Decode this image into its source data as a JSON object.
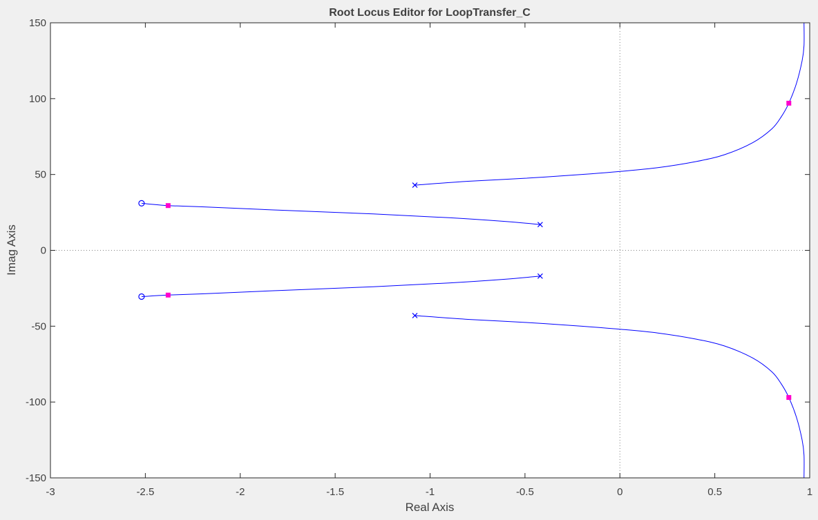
{
  "chart_data": {
    "type": "scatter",
    "title": "Root Locus Editor for LoopTransfer_C",
    "xlabel": "Real Axis",
    "ylabel": "Imag Axis",
    "xlim": [
      -3,
      1
    ],
    "ylim": [
      -150,
      150
    ],
    "xticks": [
      -3,
      -2.5,
      -2,
      -1.5,
      -1,
      -0.5,
      0,
      0.5,
      1
    ],
    "xtick_labels": [
      "-3",
      "-2.5",
      "-2",
      "-1.5",
      "-1",
      "-0.5",
      "0",
      "0.5",
      "1"
    ],
    "yticks": [
      -150,
      -100,
      -50,
      0,
      50,
      100,
      150
    ],
    "ytick_labels": [
      "-150",
      "-100",
      "-50",
      "0",
      "50",
      "100",
      "150"
    ],
    "grid": false,
    "reference_lines": {
      "x": 0,
      "y": 0
    },
    "colors": {
      "locus": "#0000ff",
      "closed_loop_poles": "#ff00cc",
      "axes": "#262626",
      "background": "#ffffff"
    },
    "poles": [
      {
        "x": -1.08,
        "y": 43
      },
      {
        "x": -1.08,
        "y": -43
      },
      {
        "x": -0.42,
        "y": 17
      },
      {
        "x": -0.42,
        "y": -17
      }
    ],
    "zeros": [
      {
        "x": -2.52,
        "y": 31
      },
      {
        "x": -2.52,
        "y": -30.5
      }
    ],
    "closed_loop_poles": [
      {
        "x": -2.38,
        "y": 29.5
      },
      {
        "x": -2.38,
        "y": -29.5
      },
      {
        "x": 0.89,
        "y": 97
      },
      {
        "x": 0.89,
        "y": -97
      }
    ],
    "branches": [
      {
        "x": [
          -1.08,
          -0.8,
          -0.5,
          -0.2,
          0,
          0.2,
          0.4,
          0.55,
          0.7,
          0.8,
          0.85,
          0.89,
          0.93,
          0.96,
          0.97,
          0.97
        ],
        "y": [
          43,
          45.5,
          47.5,
          50,
          52,
          54.5,
          58.5,
          63,
          71,
          80,
          88,
          97,
          110,
          125,
          135,
          150
        ]
      },
      {
        "x": [
          -1.08,
          -0.8,
          -0.5,
          -0.2,
          0,
          0.2,
          0.4,
          0.55,
          0.7,
          0.8,
          0.85,
          0.89,
          0.93,
          0.96,
          0.97,
          0.97
        ],
        "y": [
          -43,
          -45.5,
          -47.5,
          -50,
          -52,
          -54.5,
          -58.5,
          -63,
          -71,
          -80,
          -88,
          -97,
          -110,
          -125,
          -135,
          -150
        ]
      },
      {
        "x": [
          -0.42,
          -0.6,
          -0.9,
          -1.3,
          -1.8,
          -2.2,
          -2.38,
          -2.52
        ],
        "y": [
          17,
          19,
          21.5,
          24,
          26.5,
          28.7,
          29.5,
          31
        ]
      },
      {
        "x": [
          -0.42,
          -0.6,
          -0.9,
          -1.3,
          -1.8,
          -2.2,
          -2.38,
          -2.52
        ],
        "y": [
          -17,
          -19,
          -21.5,
          -24,
          -26.5,
          -28.7,
          -29.5,
          -30.5
        ]
      }
    ]
  }
}
